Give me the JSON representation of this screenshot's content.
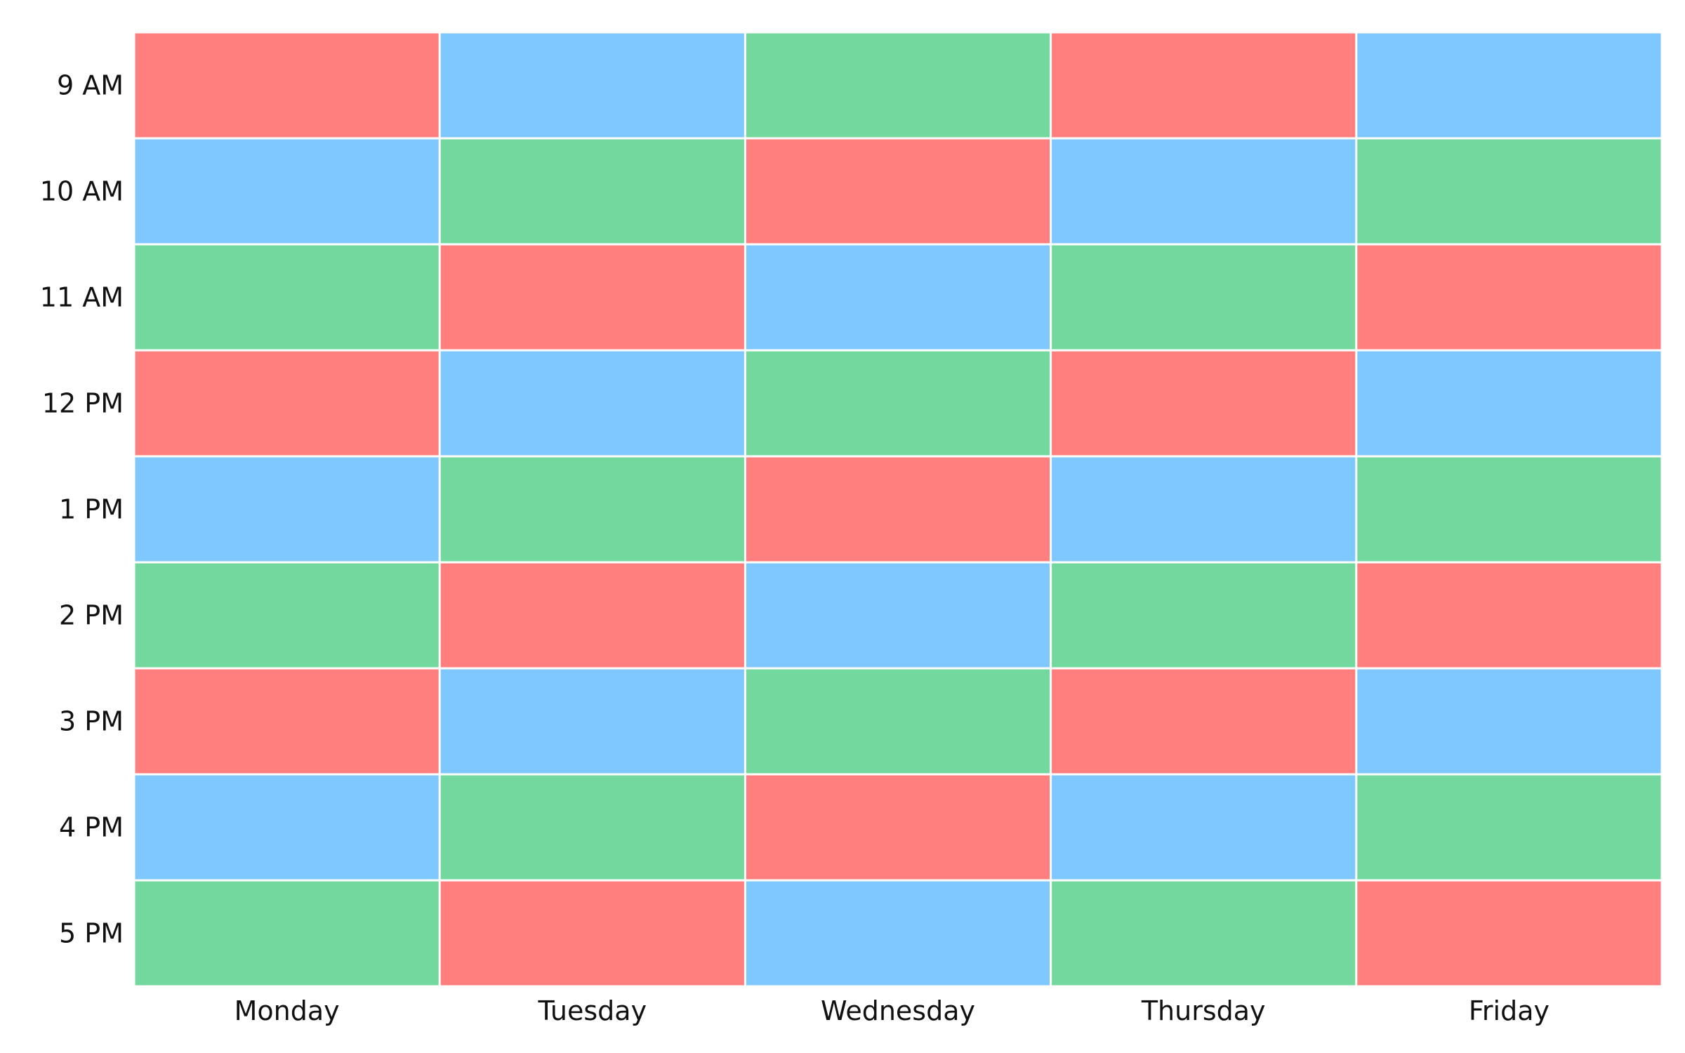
{
  "chart_data": {
    "type": "heatmap",
    "title": "",
    "xlabel": "",
    "ylabel": "",
    "grid": true,
    "x_categories": [
      "Monday",
      "Tuesday",
      "Wednesday",
      "Thursday",
      "Friday"
    ],
    "y_categories": [
      "9 AM",
      "10 AM",
      "11 AM",
      "12 PM",
      "1 PM",
      "2 PM",
      "3 PM",
      "4 PM",
      "5 PM"
    ],
    "cells": [
      [
        "red",
        "blue",
        "green",
        "red",
        "blue"
      ],
      [
        "blue",
        "green",
        "red",
        "blue",
        "green"
      ],
      [
        "green",
        "red",
        "blue",
        "green",
        "red"
      ],
      [
        "red",
        "blue",
        "green",
        "red",
        "blue"
      ],
      [
        "blue",
        "green",
        "red",
        "blue",
        "green"
      ],
      [
        "green",
        "red",
        "blue",
        "green",
        "red"
      ],
      [
        "red",
        "blue",
        "green",
        "red",
        "blue"
      ],
      [
        "blue",
        "green",
        "red",
        "blue",
        "green"
      ],
      [
        "green",
        "red",
        "blue",
        "green",
        "red"
      ]
    ],
    "colors": {
      "red": "#ff7f7f",
      "blue": "#7fc7ff",
      "green": "#73d89e",
      "gridline": "#ffffff"
    }
  }
}
